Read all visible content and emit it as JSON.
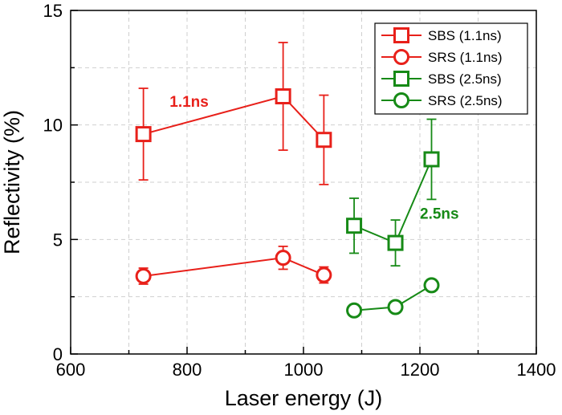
{
  "chart_data": {
    "type": "scatter",
    "title": "",
    "xlabel": "Laser energy (J)",
    "ylabel": "Reflectivity (%)",
    "xlim": [
      600,
      1400
    ],
    "ylim": [
      0,
      15
    ],
    "xticks": [
      600,
      800,
      1000,
      1200,
      1400
    ],
    "yticks": [
      0,
      5,
      10,
      15
    ],
    "x_tick_labels": [
      "600",
      "800",
      "1000",
      "1200",
      "1400"
    ],
    "y_tick_labels": [
      "0",
      "5",
      "10",
      "15"
    ],
    "grid": true,
    "legend_position": "top-right",
    "series": [
      {
        "name": "SBS (1.1ns)",
        "marker": "square",
        "color": "#e8201a",
        "x": [
          725,
          965,
          1035
        ],
        "y": [
          9.6,
          11.25,
          9.35
        ],
        "err": [
          2.0,
          2.35,
          1.95
        ]
      },
      {
        "name": "SRS (1.1ns)",
        "marker": "circle",
        "color": "#e8201a",
        "x": [
          725,
          965,
          1035
        ],
        "y": [
          3.4,
          4.2,
          3.45
        ],
        "err": [
          0.35,
          0.5,
          0.35
        ]
      },
      {
        "name": "SBS (2.5ns)",
        "marker": "square",
        "color": "#168a16",
        "x": [
          1087,
          1158,
          1220
        ],
        "y": [
          5.6,
          4.85,
          8.5
        ],
        "err": [
          1.2,
          1.0,
          1.75
        ]
      },
      {
        "name": "SRS (2.5ns)",
        "marker": "circle",
        "color": "#168a16",
        "x": [
          1087,
          1158,
          1220
        ],
        "y": [
          1.9,
          2.05,
          3.0
        ],
        "err": [
          0,
          0,
          0
        ]
      }
    ],
    "annotations": [
      {
        "text": "1.1ns",
        "x": 770,
        "y": 10.8,
        "color": "#e8201a"
      },
      {
        "text": "2.5ns",
        "x": 1200,
        "y": 5.9,
        "color": "#168a16"
      }
    ]
  }
}
